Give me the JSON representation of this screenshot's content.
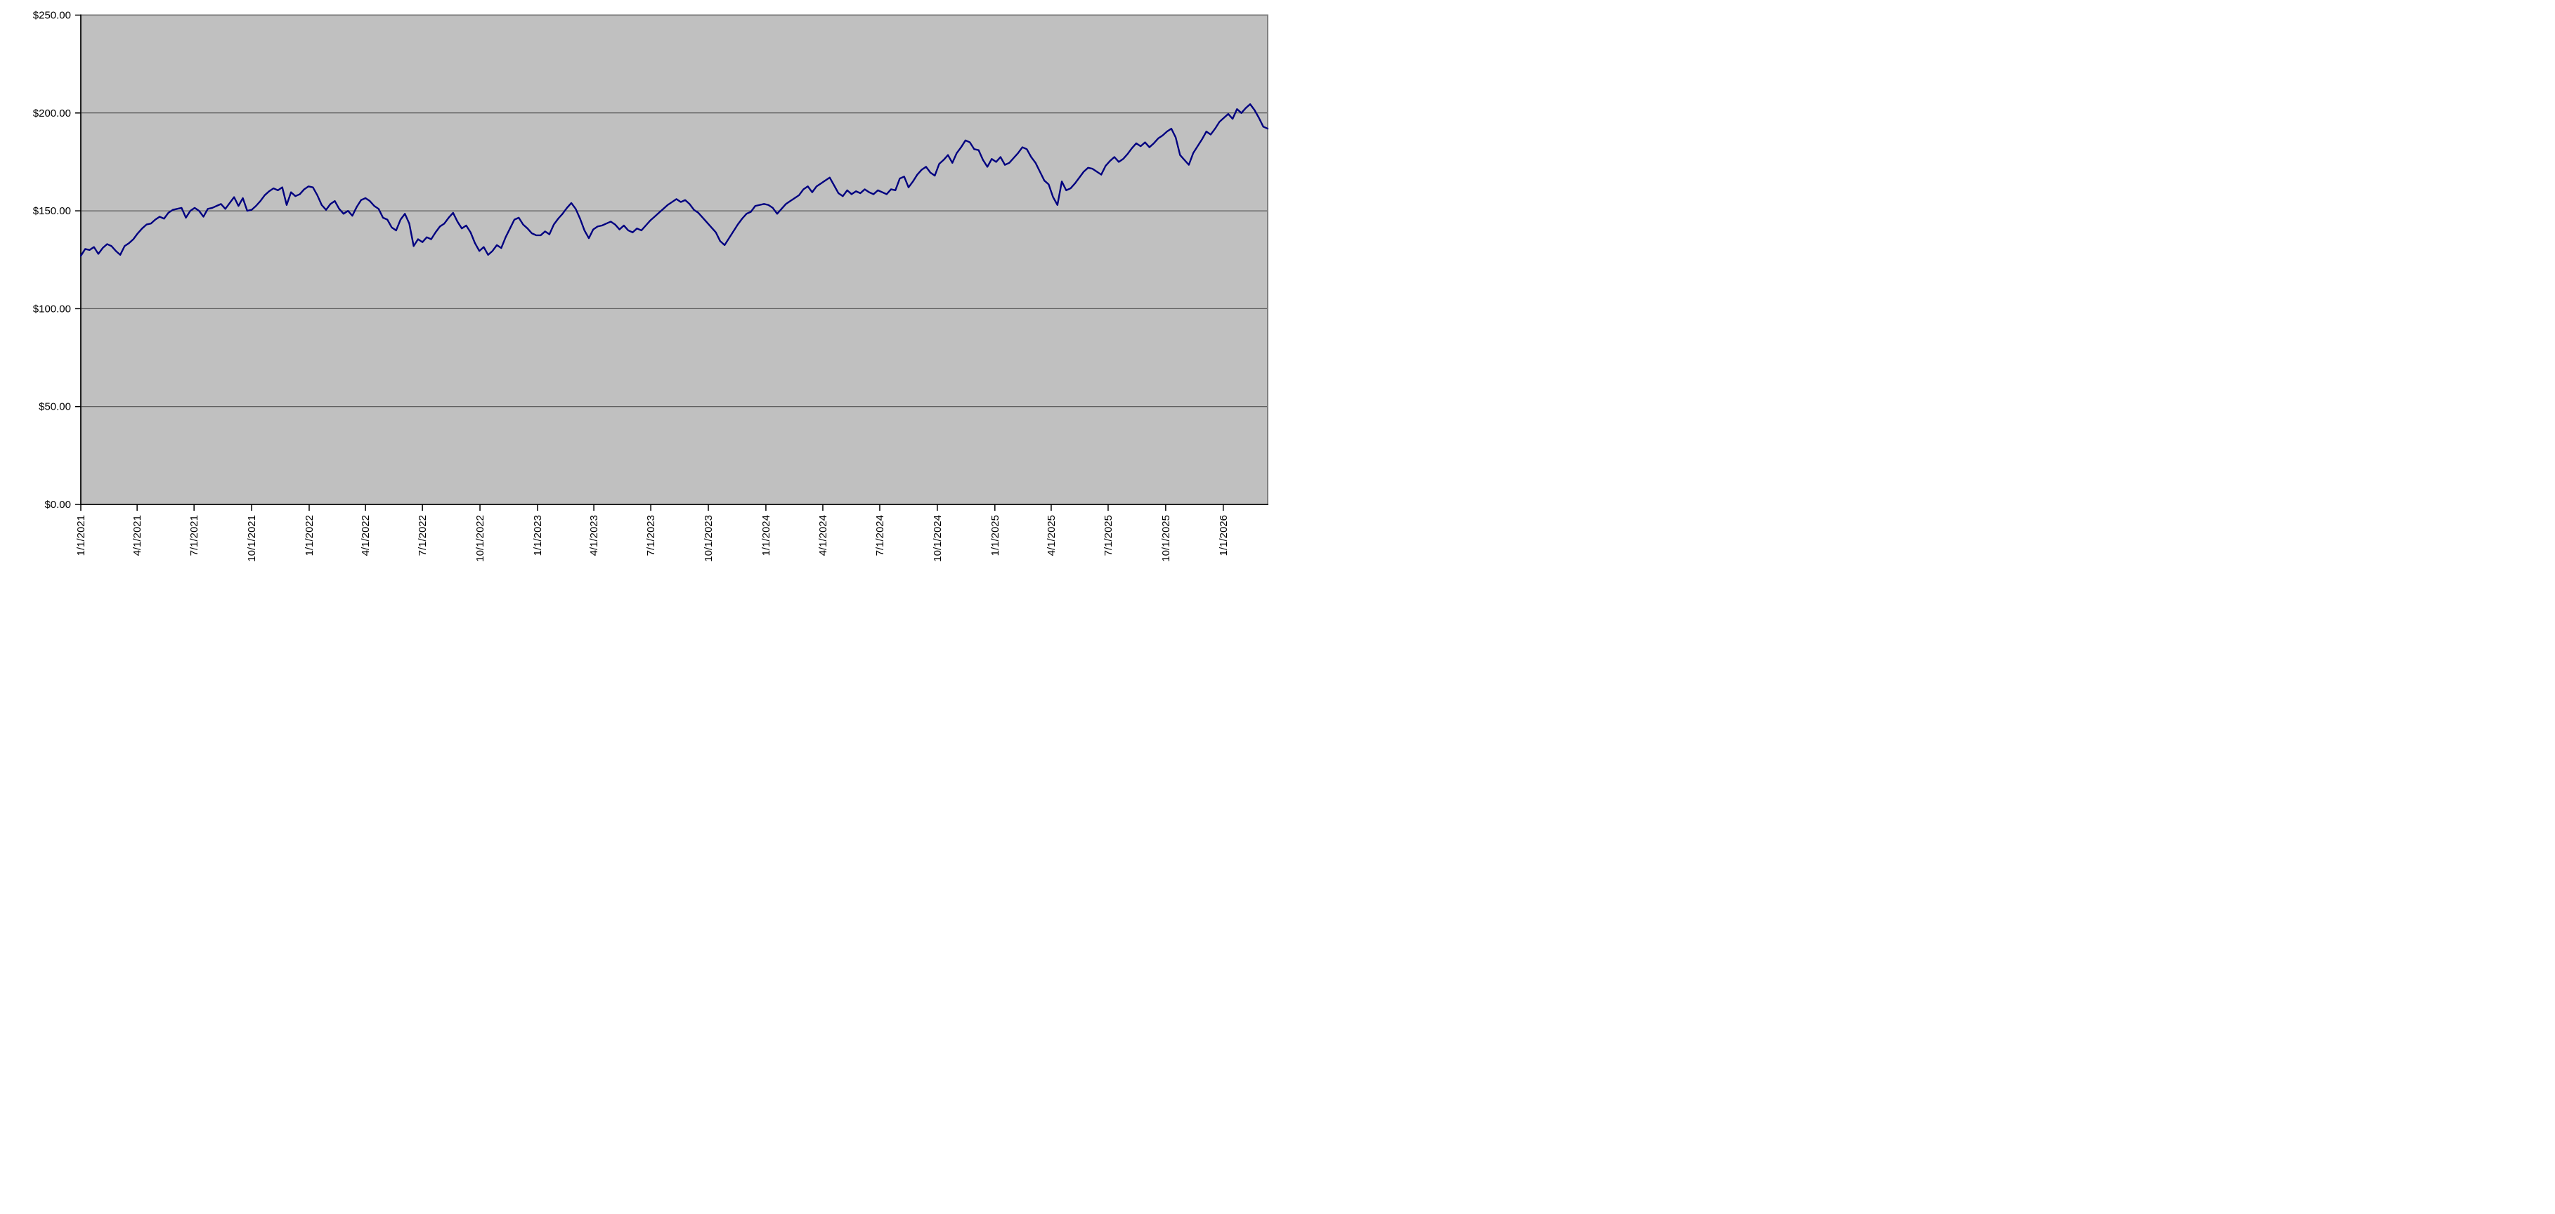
{
  "chart_data": {
    "type": "line",
    "title": "",
    "xlabel": "",
    "ylabel": "",
    "legend": "none",
    "grid": "horizontal",
    "plot_style": {
      "plot_background": "#c0c0c0",
      "plot_border_color": "#808080",
      "gridline_color": "#404040",
      "axis_color": "#000000",
      "page_background": "#ffffff",
      "line_color": "#000080"
    },
    "y_axis": {
      "min": 0,
      "max": 250,
      "tick_interval": 50,
      "tick_labels": [
        "$0.00",
        "$50.00",
        "$100.00",
        "$150.00",
        "$200.00",
        "$250.00"
      ]
    },
    "x_axis": {
      "start_date": "1/1/2021",
      "point_interval_days": 7,
      "tick_labels": [
        "1/1/2021",
        "4/1/2021",
        "7/1/2021",
        "10/1/2021",
        "1/1/2022",
        "4/1/2022",
        "7/1/2022",
        "10/1/2022",
        "1/1/2023",
        "4/1/2023",
        "7/1/2023",
        "10/1/2023",
        "1/1/2024",
        "4/1/2024",
        "7/1/2024",
        "10/1/2024",
        "1/1/2025",
        "4/1/2025",
        "7/1/2025",
        "10/1/2025",
        "1/1/2026"
      ]
    },
    "series": [
      {
        "color": "#000080",
        "values": [
          127,
          130.5,
          130,
          131.5,
          128,
          131,
          133,
          132,
          129.5,
          127.5,
          132,
          133.5,
          135.5,
          138.5,
          141,
          143,
          143.5,
          145.5,
          147,
          146,
          149,
          150.5,
          151,
          151.5,
          146.5,
          150,
          151.5,
          150,
          147,
          151,
          151.5,
          152.5,
          153.5,
          151,
          154,
          157,
          152.5,
          156.5,
          150,
          150.5,
          152.5,
          155,
          158,
          160,
          161.5,
          160.5,
          162,
          153,
          159.5,
          157.5,
          158.5,
          161,
          162.5,
          162,
          158,
          153,
          150.5,
          153.5,
          155,
          151,
          148.5,
          150,
          147.5,
          152,
          155.5,
          156.5,
          155,
          152.5,
          151,
          146.5,
          145.5,
          141.5,
          140,
          145.5,
          148.5,
          143.5,
          132,
          135.5,
          134,
          136.5,
          135.5,
          139,
          142,
          143.5,
          146.5,
          149,
          144.5,
          141,
          142.5,
          139,
          133.5,
          129.5,
          131.5,
          127.5,
          129.5,
          132.5,
          131,
          136.5,
          141,
          145.5,
          146.5,
          143,
          141,
          138.5,
          137.5,
          137.5,
          139.5,
          138,
          143,
          146,
          148.5,
          151.5,
          154,
          151,
          146,
          140,
          136,
          140.5,
          142,
          142.5,
          143.5,
          144.5,
          143,
          140.5,
          142.5,
          140,
          139,
          141,
          140,
          142.5,
          145,
          147,
          149,
          151,
          153,
          154.5,
          156,
          154.5,
          155.5,
          153.5,
          150.5,
          149,
          146.5,
          144,
          141.5,
          139,
          134.5,
          132.5,
          136,
          139.5,
          143,
          146,
          148.5,
          149.5,
          152.5,
          153,
          153.5,
          153,
          151.5,
          148.5,
          151,
          153.5,
          155,
          156.5,
          158,
          161,
          162.5,
          159.5,
          162.5,
          164,
          165.5,
          167,
          163,
          159,
          157.5,
          160.5,
          158.5,
          160,
          159,
          161,
          159.5,
          158.5,
          160.5,
          159.5,
          158.5,
          161,
          160.5,
          166.5,
          167.5,
          162,
          165,
          168.5,
          171,
          172.5,
          169.5,
          168,
          174,
          176,
          178.5,
          174.5,
          179.5,
          182.5,
          186,
          185,
          181.5,
          181,
          176,
          172.5,
          176.5,
          175,
          177.5,
          173.5,
          174.5,
          177,
          179.5,
          182.5,
          181.5,
          177.5,
          174.5,
          170,
          165.5,
          163.5,
          157,
          153,
          165,
          160.5,
          161.5,
          164,
          167,
          170,
          172,
          171.5,
          170,
          168.5,
          173,
          175.5,
          177.5,
          175,
          176.5,
          179,
          182,
          184.5,
          183,
          185,
          182.5,
          184.5,
          187,
          188.5,
          190.5,
          192,
          187.5,
          178.5,
          176,
          173.5,
          179.5,
          183,
          186.5,
          190.5,
          189,
          192,
          195.5,
          197.5,
          199.5,
          197,
          202,
          200,
          202.5,
          204.5,
          201.5,
          197.5,
          193,
          192
        ]
      }
    ]
  }
}
